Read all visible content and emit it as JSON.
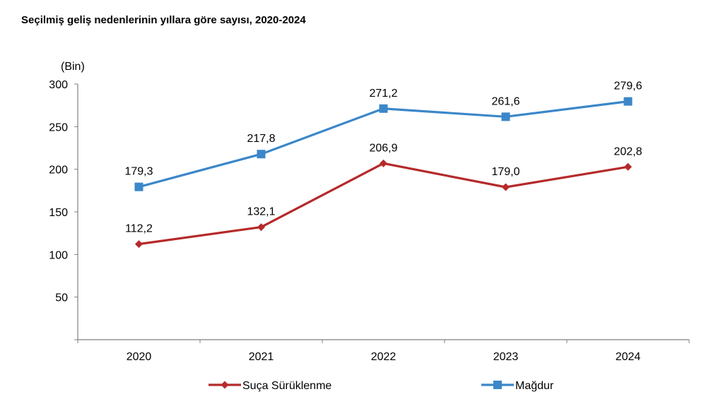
{
  "chart_data": {
    "type": "line",
    "title": "Seçilmiş geliş nedenlerinin yıllara göre sayısı, 2020-2024",
    "unit_label": "(Bin)",
    "categories": [
      "2020",
      "2021",
      "2022",
      "2023",
      "2024"
    ],
    "y_ticks": [
      "300",
      "250",
      "200",
      "150",
      "100",
      "50"
    ],
    "ylim": [
      0,
      300
    ],
    "series": [
      {
        "name": "Mağdur",
        "color": "#3b87c9",
        "marker": "square",
        "values": [
          179.3,
          217.8,
          271.2,
          261.6,
          279.6
        ],
        "labels": [
          "179,3",
          "217,8",
          "271,2",
          "261,6",
          "279,6"
        ]
      },
      {
        "name": "Suça Sürüklenme",
        "color": "#b52a2a",
        "marker": "diamond",
        "values": [
          112.2,
          132.1,
          206.9,
          179.0,
          202.8
        ],
        "labels": [
          "112,2",
          "132,1",
          "206,9",
          "179,0",
          "202,8"
        ]
      }
    ],
    "legend": [
      "Suça Sürüklenme",
      "Mağdur"
    ],
    "legend_position": "bottom"
  }
}
